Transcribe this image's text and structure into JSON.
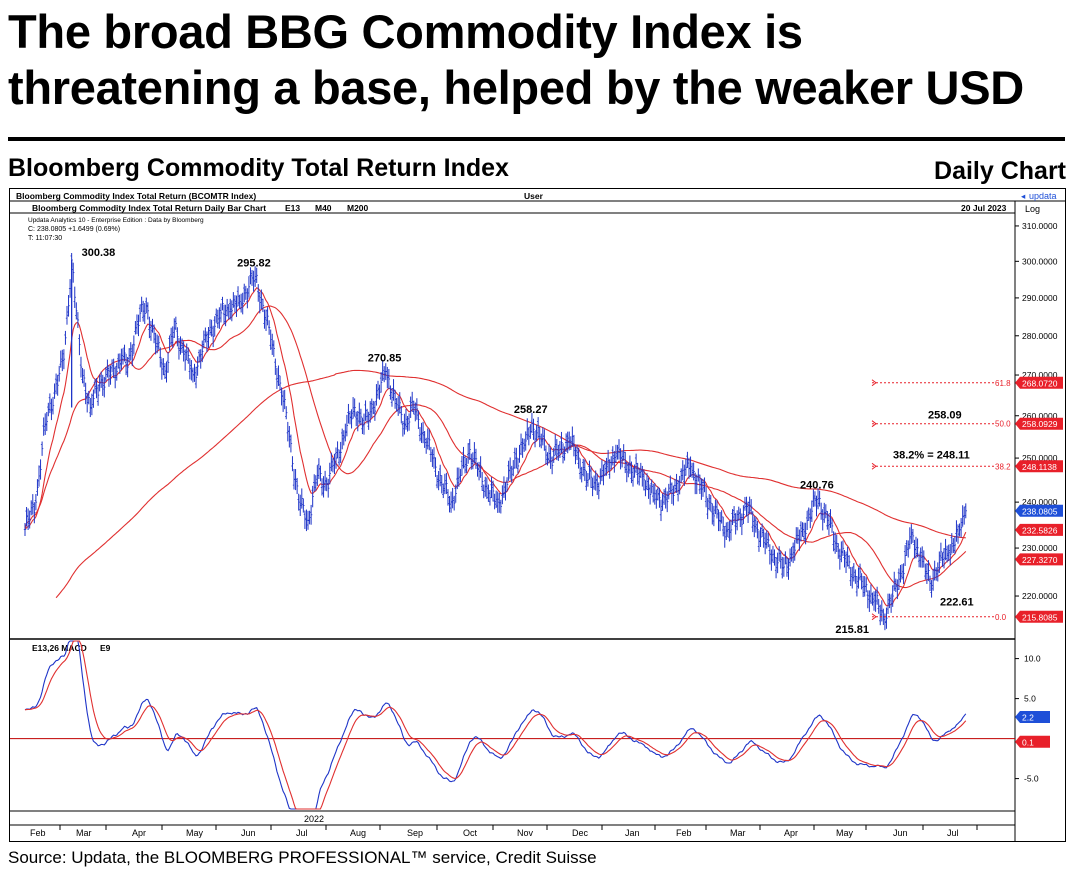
{
  "headline": "The broad BBG Commodity Index is threatening a base, helped by the weaker USD",
  "subtitle": "Bloomberg Commodity Total Return Index",
  "chart_kind": "Daily Chart",
  "source": "Source: Updata, the BLOOMBERG PROFESSIONAL™ service, Credit Suisse",
  "colors": {
    "price_bars": "#1f35c8",
    "moving_averages": "#e03030",
    "macd_line": "#1f35c8",
    "signal_line": "#e03030",
    "tag_red": "#e8202a",
    "tag_blue": "#1e4fd8"
  },
  "chart_header": {
    "top_left": "Bloomberg Commodity Index Total Return (BCOMTR Index)",
    "top_center": "User",
    "brand": "updata",
    "series_line": "Bloomberg Commodity Index Total Return Daily Bar Chart",
    "studies": [
      "E13",
      "M40",
      "M200"
    ],
    "date": "20 Jul 2023",
    "scale": "Log",
    "info": [
      "Updata Analytics 10 - Enterprise Edition : Data by Bloomberg",
      "C: 238.0805 +1.6499 (0.69%)",
      "T: 11:07:30"
    ]
  },
  "chart_data": {
    "type": "line",
    "price_axis": {
      "scale": "log",
      "ylim": [
        212,
        312
      ],
      "ticks": [
        "310.0000",
        "300.0000",
        "290.0000",
        "280.0000",
        "270.0000",
        "260.0000",
        "250.0000",
        "240.0000",
        "230.0000",
        "220.0000"
      ]
    },
    "x_axis": {
      "year_label": "2022",
      "ticks": [
        "Feb",
        "Mar",
        "Apr",
        "May",
        "Jun",
        "Jul",
        "Aug",
        "Sep",
        "Oct",
        "Nov",
        "Dec",
        "Jan",
        "Feb",
        "Mar",
        "Apr",
        "May",
        "Jun",
        "Jul"
      ]
    },
    "price_anchors": [
      [
        0,
        234
      ],
      [
        7,
        240
      ],
      [
        13,
        258
      ],
      [
        19,
        266
      ],
      [
        25,
        274
      ],
      [
        30,
        300.38
      ],
      [
        36,
        272
      ],
      [
        42,
        262
      ],
      [
        48,
        268
      ],
      [
        55,
        270
      ],
      [
        62,
        274
      ],
      [
        66,
        272
      ],
      [
        72,
        283
      ],
      [
        78,
        288
      ],
      [
        84,
        278
      ],
      [
        90,
        271
      ],
      [
        96,
        282
      ],
      [
        102,
        276
      ],
      [
        108,
        270
      ],
      [
        114,
        276
      ],
      [
        120,
        282
      ],
      [
        126,
        286
      ],
      [
        132,
        287
      ],
      [
        138,
        289
      ],
      [
        144,
        293
      ],
      [
        148,
        295.82
      ],
      [
        153,
        288
      ],
      [
        158,
        279
      ],
      [
        164,
        268
      ],
      [
        170,
        255
      ],
      [
        176,
        240
      ],
      [
        182,
        236
      ],
      [
        188,
        246
      ],
      [
        194,
        244
      ],
      [
        200,
        250
      ],
      [
        206,
        256
      ],
      [
        212,
        262
      ],
      [
        218,
        258
      ],
      [
        224,
        262
      ],
      [
        232,
        270.85
      ],
      [
        238,
        264
      ],
      [
        244,
        258
      ],
      [
        250,
        262
      ],
      [
        256,
        256
      ],
      [
        262,
        250
      ],
      [
        268,
        244
      ],
      [
        274,
        240
      ],
      [
        280,
        246
      ],
      [
        286,
        252
      ],
      [
        292,
        247
      ],
      [
        298,
        242
      ],
      [
        304,
        240
      ],
      [
        310,
        244
      ],
      [
        316,
        250
      ],
      [
        322,
        254
      ],
      [
        326,
        258.27
      ],
      [
        332,
        254
      ],
      [
        338,
        250
      ],
      [
        344,
        252
      ],
      [
        350,
        254
      ],
      [
        356,
        250
      ],
      [
        362,
        245
      ],
      [
        368,
        244
      ],
      [
        374,
        248
      ],
      [
        380,
        251
      ],
      [
        386,
        249
      ],
      [
        392,
        247
      ],
      [
        398,
        245
      ],
      [
        404,
        242
      ],
      [
        410,
        240
      ],
      [
        416,
        242
      ],
      [
        422,
        246
      ],
      [
        428,
        248
      ],
      [
        434,
        244
      ],
      [
        440,
        240
      ],
      [
        446,
        236
      ],
      [
        452,
        234
      ],
      [
        458,
        236
      ],
      [
        464,
        239
      ],
      [
        470,
        235
      ],
      [
        476,
        231
      ],
      [
        482,
        228
      ],
      [
        488,
        226
      ],
      [
        494,
        229
      ],
      [
        500,
        234
      ],
      [
        506,
        238
      ],
      [
        510,
        240.76
      ],
      [
        516,
        236
      ],
      [
        522,
        231
      ],
      [
        528,
        227
      ],
      [
        534,
        224
      ],
      [
        540,
        222
      ],
      [
        546,
        219
      ],
      [
        552,
        215.81
      ],
      [
        558,
        220
      ],
      [
        564,
        225
      ],
      [
        570,
        233
      ],
      [
        576,
        228
      ],
      [
        582,
        222.61
      ],
      [
        588,
        227
      ],
      [
        594,
        229
      ],
      [
        600,
        233
      ],
      [
        605,
        238.08
      ]
    ],
    "moving_averages": [
      {
        "name": "E13"
      },
      {
        "name": "M40"
      },
      {
        "name": "M200"
      }
    ],
    "annotations": [
      {
        "label": "300.38",
        "x": 30,
        "y": 300.38
      },
      {
        "label": "295.82",
        "x": 148,
        "y": 295.82
      },
      {
        "label": "270.85",
        "x": 232,
        "y": 270.85
      },
      {
        "label": "258.27",
        "x": 326,
        "y": 258.27
      },
      {
        "label": "240.76",
        "x": 510,
        "y": 240.76
      },
      {
        "label": "215.81",
        "x": 552,
        "y": 215.81
      },
      {
        "label": "222.61",
        "x": 582,
        "y": 222.61
      }
    ],
    "fibonacci": [
      {
        "level": "61.8",
        "price": 268.07,
        "tag": "268.0720"
      },
      {
        "level": "50.0",
        "price": 258.09,
        "tag": "258.0929"
      },
      {
        "level": "38.2",
        "price": 248.11,
        "tag": "248.1138"
      },
      {
        "level": "0.0",
        "price": 215.81,
        "tag": "215.8085"
      }
    ],
    "fib_labels": [
      "258.09",
      "38.2% = 248.11"
    ],
    "price_tags": [
      {
        "price": 238.08,
        "text": "238.0805",
        "color": "blue"
      },
      {
        "price": 233.9,
        "text": "232.5826",
        "color": "red"
      },
      {
        "price": 227.6,
        "text": "227.3270",
        "color": "red"
      }
    ],
    "macd": {
      "title": "E13,26 MACD",
      "signal": "E9",
      "ylim": [
        -8.8,
        12.2
      ],
      "ticks": [
        "10.0",
        "5.0",
        "-5.0"
      ],
      "tags": [
        {
          "value": 2.2,
          "text": "2.2",
          "color": "blue"
        },
        {
          "value": 0.1,
          "text": "0.1",
          "color": "red"
        }
      ]
    }
  }
}
